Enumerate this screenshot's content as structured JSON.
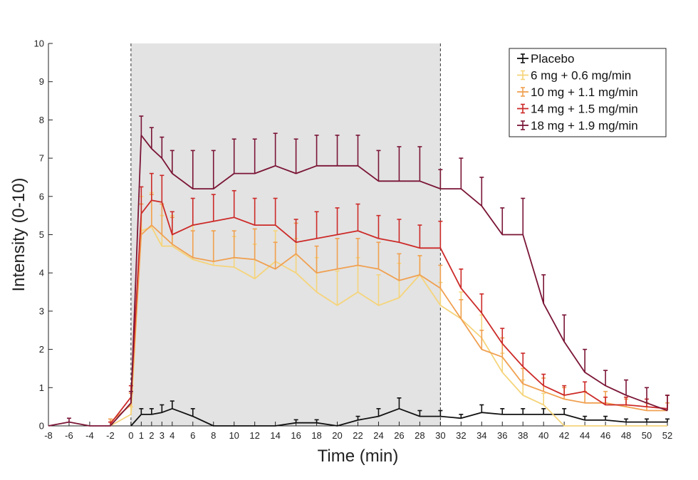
{
  "chart_data": {
    "type": "line",
    "title": "",
    "xlabel": "Time (min)",
    "ylabel": "Intensity (0-10)",
    "xlim": [
      -8,
      52
    ],
    "ylim": [
      0,
      10
    ],
    "xticks": [
      -8,
      -6,
      -4,
      -2,
      0,
      1,
      2,
      3,
      4,
      6,
      8,
      10,
      12,
      14,
      16,
      18,
      20,
      22,
      24,
      26,
      28,
      30,
      32,
      34,
      36,
      38,
      40,
      42,
      44,
      46,
      48,
      50,
      52
    ],
    "yticks": [
      0,
      1,
      2,
      3,
      4,
      5,
      6,
      7,
      8,
      9,
      10
    ],
    "infusion_window": [
      0,
      30
    ],
    "legend_position": "top-right",
    "series": [
      {
        "name": "Placebo",
        "color": "#111111",
        "x": [
          0,
          1,
          2,
          3,
          4,
          6,
          8,
          10,
          12,
          14,
          16,
          18,
          20,
          22,
          24,
          26,
          28,
          30,
          32,
          34,
          36,
          38,
          40,
          42,
          44,
          46,
          48,
          50,
          52
        ],
        "y": [
          0,
          0.3,
          0.3,
          0.35,
          0.45,
          0.25,
          0,
          0,
          0,
          0,
          0.08,
          0.08,
          0,
          0.15,
          0.25,
          0.45,
          0.25,
          0.25,
          0.2,
          0.35,
          0.3,
          0.3,
          0.3,
          0.3,
          0.15,
          0.15,
          0.1,
          0.1,
          0.1
        ],
        "err": [
          0,
          0.15,
          0.15,
          0.2,
          0.2,
          0.2,
          0,
          0,
          0,
          0,
          0.08,
          0.08,
          0,
          0.1,
          0.2,
          0.28,
          0.15,
          0.15,
          0.1,
          0.2,
          0.15,
          0.15,
          0.15,
          0.15,
          0.1,
          0.1,
          0.08,
          0.08,
          0.08
        ]
      },
      {
        "name": "6 mg + 0.6 mg/min",
        "color": "#f5d47a",
        "x": [
          -2,
          0,
          1,
          2,
          3,
          4,
          6,
          8,
          10,
          12,
          14,
          16,
          18,
          20,
          22,
          24,
          26,
          28,
          30,
          32,
          34,
          36,
          38,
          40,
          42,
          44,
          46,
          48,
          50,
          52
        ],
        "y": [
          0,
          0.3,
          5.1,
          5.2,
          4.7,
          4.7,
          4.35,
          4.2,
          4.15,
          3.85,
          4.3,
          4.0,
          3.5,
          3.15,
          3.5,
          3.15,
          3.35,
          3.95,
          3.15,
          2.8,
          2.3,
          1.4,
          0.8,
          0.55,
          0,
          0,
          0,
          0,
          0,
          0
        ],
        "err": [
          0,
          0.2,
          0.9,
          0.9,
          0.8,
          0.8,
          0.9,
          0.9,
          0.8,
          0.9,
          0.8,
          0.9,
          0.9,
          0.9,
          0.9,
          0.8,
          0.9,
          0.5,
          0.6,
          0.7,
          0.6,
          0.5,
          0.4,
          0.3,
          0,
          0,
          0,
          0,
          0,
          0
        ]
      },
      {
        "name": "10 mg + 1.1 mg/min",
        "color": "#f0a050",
        "x": [
          -2,
          0,
          1,
          2,
          3,
          4,
          6,
          8,
          10,
          12,
          14,
          16,
          18,
          20,
          22,
          24,
          26,
          28,
          30,
          32,
          34,
          36,
          38,
          40,
          42,
          44,
          46,
          48,
          50,
          52
        ],
        "y": [
          0.1,
          0.55,
          5.0,
          5.25,
          5.0,
          4.75,
          4.4,
          4.3,
          4.4,
          4.35,
          4.1,
          4.5,
          4.0,
          4.1,
          4.2,
          4.1,
          3.8,
          3.95,
          3.6,
          2.8,
          2.0,
          1.8,
          1.1,
          0.9,
          0.7,
          0.6,
          0.6,
          0.5,
          0.4,
          0.4
        ],
        "err": [
          0.08,
          0.3,
          0.8,
          0.8,
          0.8,
          0.7,
          0.7,
          0.8,
          0.7,
          0.8,
          0.7,
          0.8,
          0.7,
          0.8,
          0.7,
          0.7,
          0.7,
          0.5,
          0.6,
          0.5,
          0.5,
          0.5,
          0.4,
          0.35,
          0.3,
          0.3,
          0.3,
          0.2,
          0.2,
          0.2
        ]
      },
      {
        "name": "14 mg + 1.5 mg/min",
        "color": "#cc2a28",
        "x": [
          -2,
          0,
          1,
          2,
          3,
          4,
          6,
          8,
          10,
          12,
          14,
          16,
          18,
          20,
          22,
          24,
          26,
          28,
          30,
          32,
          34,
          36,
          38,
          40,
          42,
          44,
          46,
          48,
          50,
          52
        ],
        "y": [
          0.05,
          0.75,
          5.55,
          5.9,
          5.85,
          5.0,
          5.25,
          5.35,
          5.45,
          5.25,
          5.25,
          4.8,
          4.9,
          5.0,
          5.1,
          4.9,
          4.8,
          4.65,
          4.65,
          3.6,
          2.95,
          2.15,
          1.55,
          1.05,
          0.8,
          0.9,
          0.55,
          0.55,
          0.5,
          0.45
        ],
        "err": [
          0.05,
          0.3,
          0.7,
          0.7,
          0.7,
          0.6,
          0.7,
          0.7,
          0.7,
          0.7,
          0.7,
          0.6,
          0.7,
          0.7,
          0.7,
          0.6,
          0.6,
          0.6,
          0.7,
          0.5,
          0.5,
          0.4,
          0.35,
          0.3,
          0.25,
          0.25,
          0.2,
          0.2,
          0.2,
          0.35
        ]
      },
      {
        "name": "18 mg + 1.9 mg/min",
        "color": "#7a1535",
        "x": [
          -8,
          -6,
          -4,
          -2,
          0,
          1,
          2,
          3,
          4,
          6,
          8,
          10,
          12,
          14,
          16,
          18,
          20,
          22,
          24,
          26,
          28,
          30,
          32,
          34,
          36,
          38,
          40,
          42,
          44,
          46,
          48,
          50,
          52
        ],
        "y": [
          0,
          0.1,
          0,
          0,
          0.6,
          7.6,
          7.25,
          7.0,
          6.6,
          6.2,
          6.2,
          6.6,
          6.6,
          6.8,
          6.6,
          6.8,
          6.8,
          6.8,
          6.4,
          6.4,
          6.4,
          6.2,
          6.2,
          5.75,
          5.0,
          5.0,
          3.2,
          2.2,
          1.4,
          1.05,
          0.8,
          0.6,
          0.4
        ],
        "err": [
          0,
          0.1,
          0,
          0,
          0.3,
          0.5,
          0.55,
          0.55,
          0.6,
          1.0,
          1.0,
          0.9,
          0.9,
          0.85,
          0.9,
          0.8,
          0.8,
          0.8,
          0.8,
          0.9,
          0.9,
          0.5,
          0.8,
          0.75,
          0.7,
          0.95,
          0.75,
          0.7,
          0.6,
          0.4,
          0.4,
          0.4,
          0.4
        ]
      }
    ]
  }
}
